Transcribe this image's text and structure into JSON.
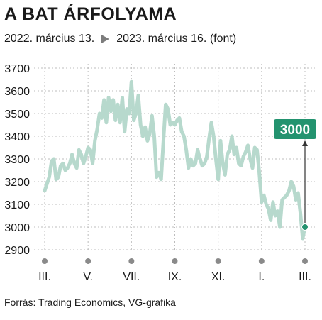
{
  "title": "A BAT ÁRFOLYAMA",
  "subtitle": {
    "start": "2022. március 13.",
    "end": "2023. március 16. (font)"
  },
  "source": "Forrás: Trading Economics, VG-grafika",
  "colors": {
    "line": "#b7d9cd",
    "accent": "#23936f",
    "grid": "#bdbdbd",
    "tick_dot": "#8a8a8a"
  },
  "chart_data": {
    "type": "line",
    "ylim": [
      2900,
      3700
    ],
    "yticks": [
      "3700",
      "3600",
      "3500",
      "3400",
      "3300",
      "3200",
      "3100",
      "3000",
      "2900"
    ],
    "xticks": [
      "III.",
      "V.",
      "VII.",
      "IX.",
      "XI.",
      "I.",
      "III."
    ],
    "callout": {
      "label": "3000",
      "value": 3000
    },
    "series": [
      {
        "values": [
          3160,
          3190,
          3220,
          3290,
          3300,
          3210,
          3220,
          3270,
          3280,
          3250,
          3260,
          3280,
          3320,
          3280,
          3260,
          3340,
          3320,
          3280,
          3310,
          3350,
          3340,
          3280,
          3380,
          3430,
          3500,
          3480,
          3560,
          3460,
          3570,
          3510,
          3560,
          3470,
          3540,
          3460,
          3570,
          3420,
          3520,
          3500,
          3640,
          3470,
          3500,
          3580,
          3450,
          3400,
          3440,
          3380,
          3410,
          3490,
          3400,
          3220,
          3240,
          3210,
          3380,
          3540,
          3520,
          3450,
          3460,
          3450,
          3470,
          3480,
          3420,
          3400,
          3340,
          3260,
          3300,
          3270,
          3280,
          3340,
          3300,
          3270,
          3280,
          3310,
          3390,
          3460,
          3400,
          3300,
          3210,
          3380,
          3280,
          3230,
          3320,
          3340,
          3400,
          3320,
          3350,
          3280,
          3270,
          3310,
          3330,
          3360,
          3300,
          3260,
          3350,
          3340,
          3240,
          3110,
          3140,
          3100,
          3080,
          3030,
          3110,
          3050,
          3070,
          3000,
          3120,
          3130,
          3140,
          3160,
          3200,
          3180,
          3120,
          3150,
          3060,
          2950,
          3000
        ]
      }
    ]
  }
}
